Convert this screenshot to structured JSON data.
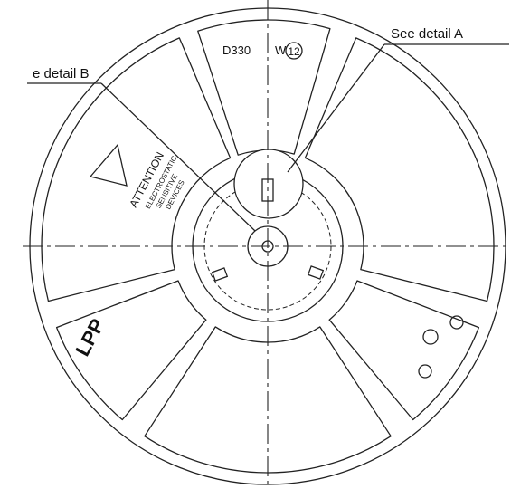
{
  "labels": {
    "detail_a": "See detail A",
    "detail_b": "e detail B",
    "diameter": "D330",
    "width_prefix": "W",
    "width": "12",
    "attention": "ATTENTION",
    "warning_lines": [
      "ELECTROSTATIC",
      "SENSITIVE",
      "DEVICES"
    ],
    "brand": "LPP"
  }
}
